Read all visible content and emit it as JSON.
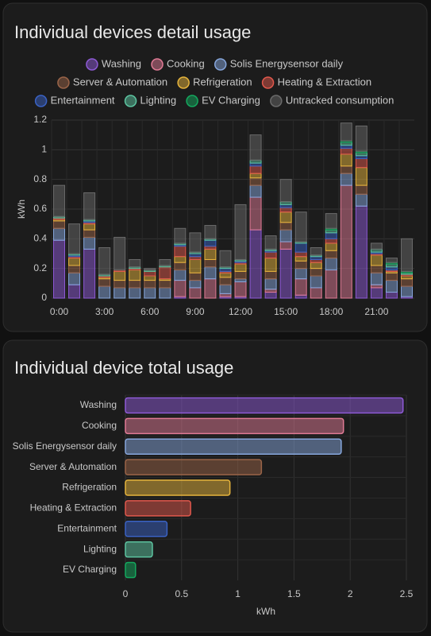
{
  "chart_data": [
    {
      "type": "stacked-bar",
      "title": "Individual devices detail usage",
      "categories": [
        "0:00",
        null,
        null,
        "3:00",
        null,
        null,
        "6:00",
        null,
        null,
        "9:00",
        null,
        null,
        "12:00",
        null,
        null,
        "15:00",
        null,
        null,
        "18:00",
        null,
        null,
        "21:00",
        null,
        null
      ],
      "ylabel": "kWh",
      "ylim": [
        0,
        1.2
      ],
      "yticks": [
        0,
        0.2,
        0.4,
        0.6,
        0.8,
        1,
        1.2
      ],
      "grid": true,
      "legend": "top",
      "series": [
        {
          "name": "Washing",
          "color": "#8e5ad6",
          "values": [
            0.39,
            0.09,
            0.33,
            0,
            0,
            0,
            0,
            0,
            0.01,
            0,
            0,
            0.01,
            0.01,
            0.46,
            0.04,
            0.33,
            0.02,
            0,
            0,
            0,
            0.62,
            0.07,
            0.04,
            0.01
          ]
        },
        {
          "name": "Cooking",
          "color": "#e07a95",
          "values": [
            0,
            0,
            0,
            0,
            0,
            0,
            0,
            0,
            0.11,
            0.07,
            0.13,
            0.02,
            0.1,
            0.22,
            0.02,
            0.05,
            0.11,
            0.07,
            0.19,
            0.76,
            0,
            0.02,
            0,
            0
          ]
        },
        {
          "name": "Solis Energysensor daily",
          "color": "#86a6dc",
          "values": [
            0.08,
            0.08,
            0.08,
            0.08,
            0.07,
            0.07,
            0.07,
            0.07,
            0.07,
            0.05,
            0.08,
            0.06,
            0.02,
            0.08,
            0.07,
            0.08,
            0.07,
            0.08,
            0.08,
            0.08,
            0.08,
            0.08,
            0.08,
            0.07
          ]
        },
        {
          "name": "Server & Automation",
          "color": "#9a6448",
          "values": [
            0.05,
            0.05,
            0.05,
            0.05,
            0.05,
            0.05,
            0.05,
            0.05,
            0.05,
            0.05,
            0.05,
            0.05,
            0.05,
            0.05,
            0.05,
            0.05,
            0.05,
            0.05,
            0.05,
            0.05,
            0.06,
            0.05,
            0.05,
            0.05
          ]
        },
        {
          "name": "Refrigeration",
          "color": "#e6b43c",
          "values": [
            0.01,
            0.05,
            0.04,
            0.01,
            0.06,
            0.07,
            0.03,
            0.01,
            0.04,
            0.09,
            0.07,
            0.03,
            0.05,
            0.03,
            0.09,
            0.07,
            0.03,
            0.04,
            0.05,
            0.08,
            0.12,
            0.07,
            0.01,
            0.02
          ]
        },
        {
          "name": "Heating & Extraction",
          "color": "#e0584c",
          "values": [
            0.01,
            0.01,
            0.01,
            0.01,
            0.01,
            0.01,
            0.03,
            0.08,
            0.07,
            0.02,
            0.02,
            0.01,
            0.01,
            0.05,
            0.04,
            0.03,
            0.03,
            0.02,
            0.03,
            0.04,
            0.06,
            0.01,
            0.01,
            0.01
          ]
        },
        {
          "name": "Entertainment",
          "color": "#3a62c4",
          "values": [
            0,
            0.01,
            0.01,
            0,
            0,
            0,
            0,
            0,
            0.01,
            0.02,
            0.04,
            0.02,
            0.01,
            0.02,
            0.01,
            0.02,
            0.06,
            0.02,
            0.04,
            0.02,
            0.02,
            0.01,
            0.02,
            0
          ]
        },
        {
          "name": "Lighting",
          "color": "#5cc4a0",
          "values": [
            0.01,
            0.01,
            0.01,
            0.01,
            0,
            0.01,
            0.01,
            0.01,
            0.01,
            0.01,
            0.01,
            0.01,
            0.01,
            0.02,
            0.01,
            0.02,
            0.01,
            0.01,
            0.02,
            0.02,
            0.02,
            0.02,
            0.02,
            0.01
          ]
        },
        {
          "name": "EV Charging",
          "color": "#14a85e",
          "values": [
            0,
            0,
            0,
            0,
            0,
            0,
            0,
            0,
            0,
            0,
            0,
            0,
            0,
            0,
            0,
            0,
            0,
            0,
            0.01,
            0.01,
            0.01,
            0,
            0.01,
            0.01
          ]
        },
        {
          "name": "Untracked consumption",
          "color": "#6a6a6a",
          "values": [
            0.21,
            0.2,
            0.18,
            0.18,
            0.22,
            0.05,
            0.01,
            0.04,
            0.1,
            0.13,
            0.09,
            0.11,
            0.37,
            0.17,
            0.09,
            0.15,
            0.2,
            0.05,
            0.1,
            0.12,
            0.17,
            0.04,
            0.03,
            0.22
          ]
        }
      ]
    },
    {
      "type": "hbar",
      "title": "Individual device total usage",
      "categories": [
        "Washing",
        "Cooking",
        "Solis Energysensor daily",
        "Server & Automation",
        "Refrigeration",
        "Heating & Extraction",
        "Entertainment",
        "Lighting",
        "EV Charging"
      ],
      "values": [
        2.47,
        1.94,
        1.92,
        1.21,
        0.93,
        0.58,
        0.37,
        0.24,
        0.09
      ],
      "colors": [
        "#8e5ad6",
        "#e07a95",
        "#86a6dc",
        "#9a6448",
        "#e6b43c",
        "#e0584c",
        "#3a62c4",
        "#5cc4a0",
        "#14a85e"
      ],
      "xlabel": "kWh",
      "xlim": [
        0,
        2.5
      ],
      "xticks": [
        0,
        0.5,
        1,
        1.5,
        2,
        2.5
      ],
      "grid": true
    }
  ]
}
